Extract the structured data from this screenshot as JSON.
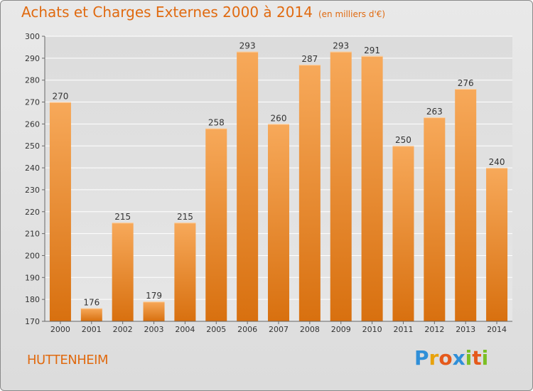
{
  "header": {
    "title": "Achats et Charges Externes 2000 à 2014",
    "subtitle": "(en milliers d'€)"
  },
  "footer": {
    "commune": "HUTTENHEIM",
    "logo_letters": [
      "P",
      "r",
      "o",
      "x",
      "i",
      "t",
      "i"
    ],
    "logo_colors": [
      "#2f8fd8",
      "#e8a20c",
      "#e55a1c",
      "#2f8fd8",
      "#7bbf24",
      "#e55a1c",
      "#7bbf24"
    ]
  },
  "colors": {
    "bar_top": "#f7a95a",
    "bar_bottom": "#d8700f",
    "accent": "#e06a10",
    "grid": "#ffffff"
  },
  "chart_data": {
    "type": "bar",
    "categories": [
      "2000",
      "2001",
      "2002",
      "2003",
      "2004",
      "2005",
      "2006",
      "2007",
      "2008",
      "2009",
      "2010",
      "2011",
      "2012",
      "2013",
      "2014"
    ],
    "values": [
      270,
      176,
      215,
      179,
      215,
      258,
      293,
      260,
      287,
      293,
      291,
      250,
      263,
      276,
      240
    ],
    "title": "Achats et Charges Externes 2000 à 2014",
    "ylim": [
      170,
      300
    ],
    "yticks": [
      170,
      180,
      190,
      200,
      210,
      220,
      230,
      240,
      250,
      260,
      270,
      280,
      290,
      300
    ],
    "grid": true,
    "data_labels": true
  }
}
